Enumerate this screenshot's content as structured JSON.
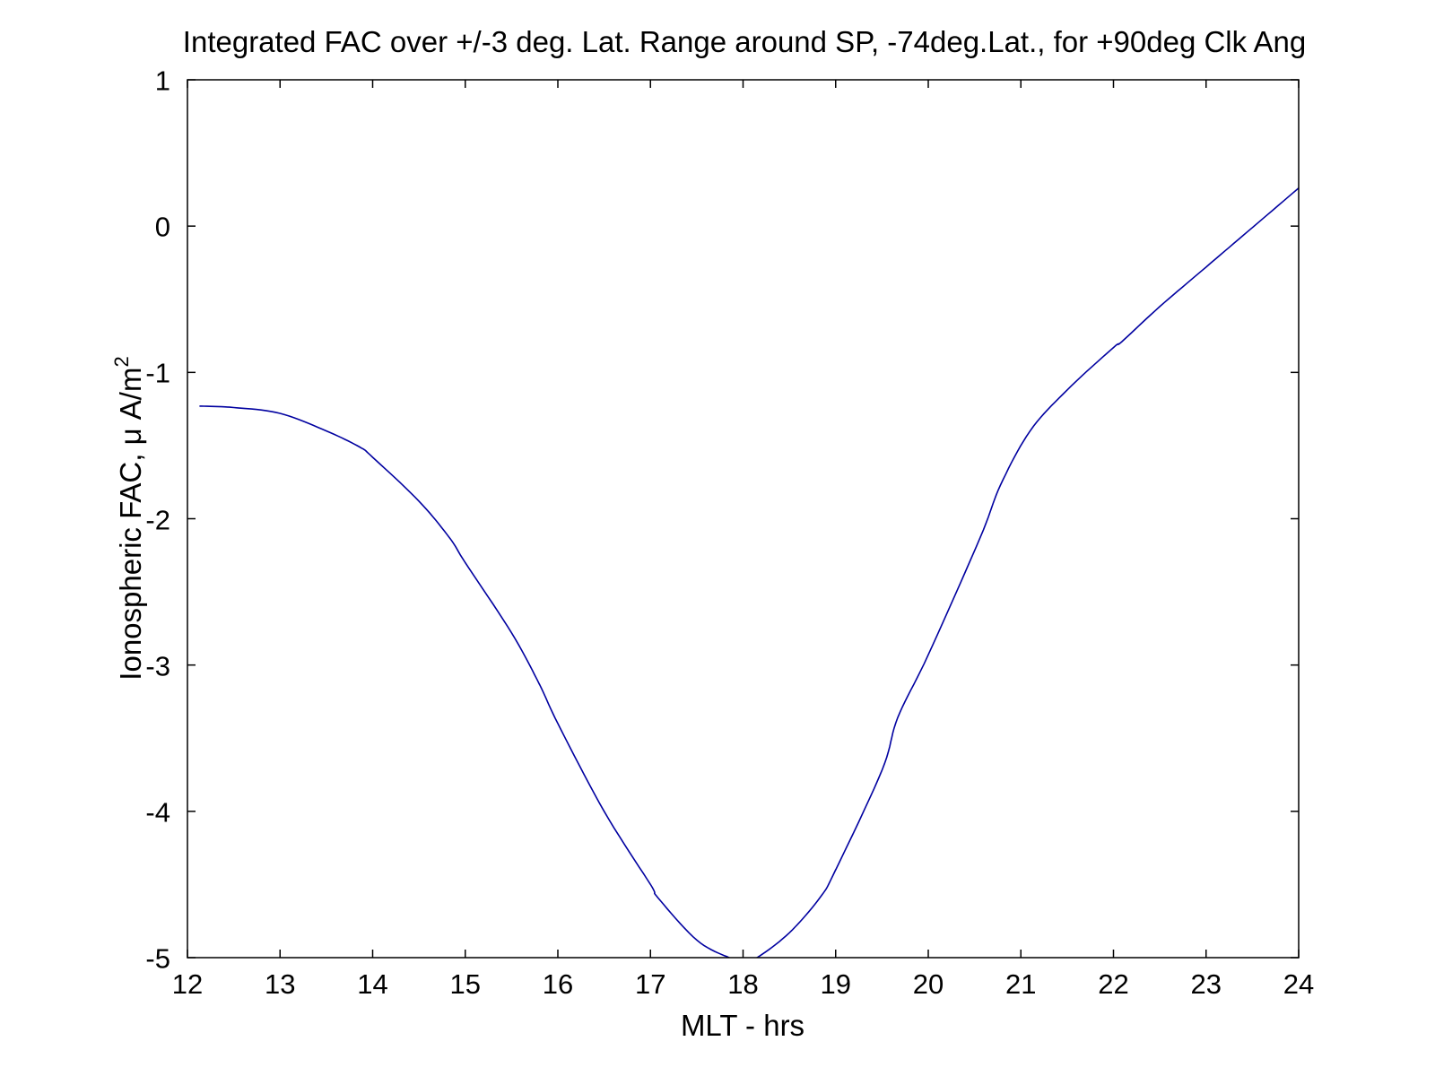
{
  "chart_data": {
    "type": "line",
    "title": "Integrated FAC over +/-3 deg. Lat. Range around SP, -74deg.Lat., for +90deg Clk Ang",
    "xlabel": "MLT - hrs",
    "ylabel": "Ionospheric FAC, μ A/m",
    "ylabel_superscript": "2",
    "xlim": [
      12,
      24
    ],
    "ylim": [
      -5,
      1
    ],
    "xticks": [
      12,
      13,
      14,
      15,
      16,
      17,
      18,
      19,
      20,
      21,
      22,
      23,
      24
    ],
    "yticks": [
      1,
      0,
      -1,
      -2,
      -3,
      -4,
      -5
    ],
    "grid": false,
    "legend": null,
    "series": [
      {
        "name": "Integrated FAC",
        "color": "#0000a0",
        "x": [
          12.13,
          12.5,
          13.0,
          13.5,
          13.86,
          14.0,
          14.5,
          14.83,
          15.0,
          15.5,
          15.8,
          16.0,
          16.5,
          17.0,
          17.08,
          17.5,
          17.85,
          18.0,
          18.15,
          18.5,
          18.83,
          19.0,
          19.5,
          19.67,
          20.0,
          20.56,
          20.78,
          21.1,
          21.5,
          22.0,
          22.09,
          22.5,
          23.0,
          23.5,
          24.0
        ],
        "y": [
          -1.23,
          -1.24,
          -1.28,
          -1.4,
          -1.51,
          -1.58,
          -1.88,
          -2.13,
          -2.3,
          -2.78,
          -3.13,
          -3.4,
          -4.0,
          -4.5,
          -4.59,
          -4.88,
          -5.0,
          -5.02,
          -5.0,
          -4.83,
          -4.59,
          -4.4,
          -3.72,
          -3.36,
          -2.93,
          -2.13,
          -1.77,
          -1.4,
          -1.12,
          -0.83,
          -0.79,
          -0.55,
          -0.28,
          -0.01,
          0.26
        ]
      }
    ]
  },
  "labels": {
    "title": "Integrated FAC over +/-3 deg. Lat. Range around SP, -74deg.Lat., for +90deg Clk Ang",
    "xlabel": "MLT - hrs",
    "ylabel": "Ionospheric FAC, μ A/m",
    "ylabel_sup": "2"
  }
}
